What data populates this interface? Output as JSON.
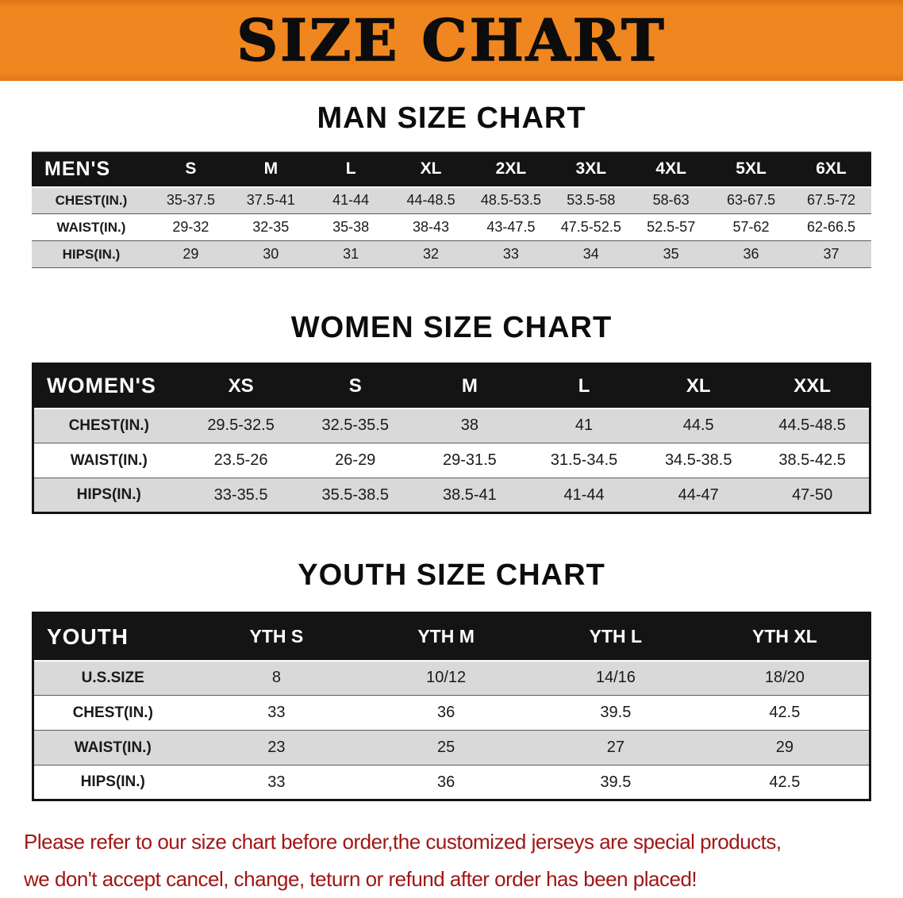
{
  "banner": {
    "title": "SIZE CHART"
  },
  "sections": {
    "men": {
      "heading": "MAN SIZE CHART",
      "table": {
        "header": [
          "MEN'S",
          "S",
          "M",
          "L",
          "XL",
          "2XL",
          "3XL",
          "4XL",
          "5XL",
          "6XL"
        ],
        "rows": [
          [
            "CHEST(IN.)",
            "35-37.5",
            "37.5-41",
            "41-44",
            "44-48.5",
            "48.5-53.5",
            "53.5-58",
            "58-63",
            "63-67.5",
            "67.5-72"
          ],
          [
            "WAIST(IN.)",
            "29-32",
            "32-35",
            "35-38",
            "38-43",
            "43-47.5",
            "47.5-52.5",
            "52.5-57",
            "57-62",
            "62-66.5"
          ],
          [
            "HIPS(IN.)",
            "29",
            "30",
            "31",
            "32",
            "33",
            "34",
            "35",
            "36",
            "37"
          ]
        ]
      }
    },
    "women": {
      "heading": "WOMEN SIZE CHART",
      "table": {
        "header": [
          "WOMEN'S",
          "XS",
          "S",
          "M",
          "L",
          "XL",
          "XXL"
        ],
        "rows": [
          [
            "CHEST(IN.)",
            "29.5-32.5",
            "32.5-35.5",
            "38",
            "41",
            "44.5",
            "44.5-48.5"
          ],
          [
            "WAIST(IN.)",
            "23.5-26",
            "26-29",
            "29-31.5",
            "31.5-34.5",
            "34.5-38.5",
            "38.5-42.5"
          ],
          [
            "HIPS(IN.)",
            "33-35.5",
            "35.5-38.5",
            "38.5-41",
            "41-44",
            "44-47",
            "47-50"
          ]
        ]
      }
    },
    "youth": {
      "heading": "YOUTH SIZE CHART",
      "table": {
        "header": [
          "YOUTH",
          "YTH S",
          "YTH M",
          "YTH L",
          "YTH XL"
        ],
        "rows": [
          [
            "U.S.SIZE",
            "8",
            "10/12",
            "14/16",
            "18/20"
          ],
          [
            "CHEST(IN.)",
            "33",
            "36",
            "39.5",
            "42.5"
          ],
          [
            "WAIST(IN.)",
            "23",
            "25",
            "27",
            "29"
          ],
          [
            "HIPS(IN.)",
            "33",
            "36",
            "39.5",
            "42.5"
          ]
        ]
      }
    }
  },
  "footer": {
    "line1": "Please refer to our size chart before order,the customized jerseys are special products,",
    "line2": "we don't accept cancel, change, teturn or refund after order has been placed!"
  },
  "colors": {
    "banner_orange": "#f0861f",
    "header_black": "#141414",
    "shaded_row_gray": "#d9d9d9",
    "footer_red": "#a11616"
  }
}
